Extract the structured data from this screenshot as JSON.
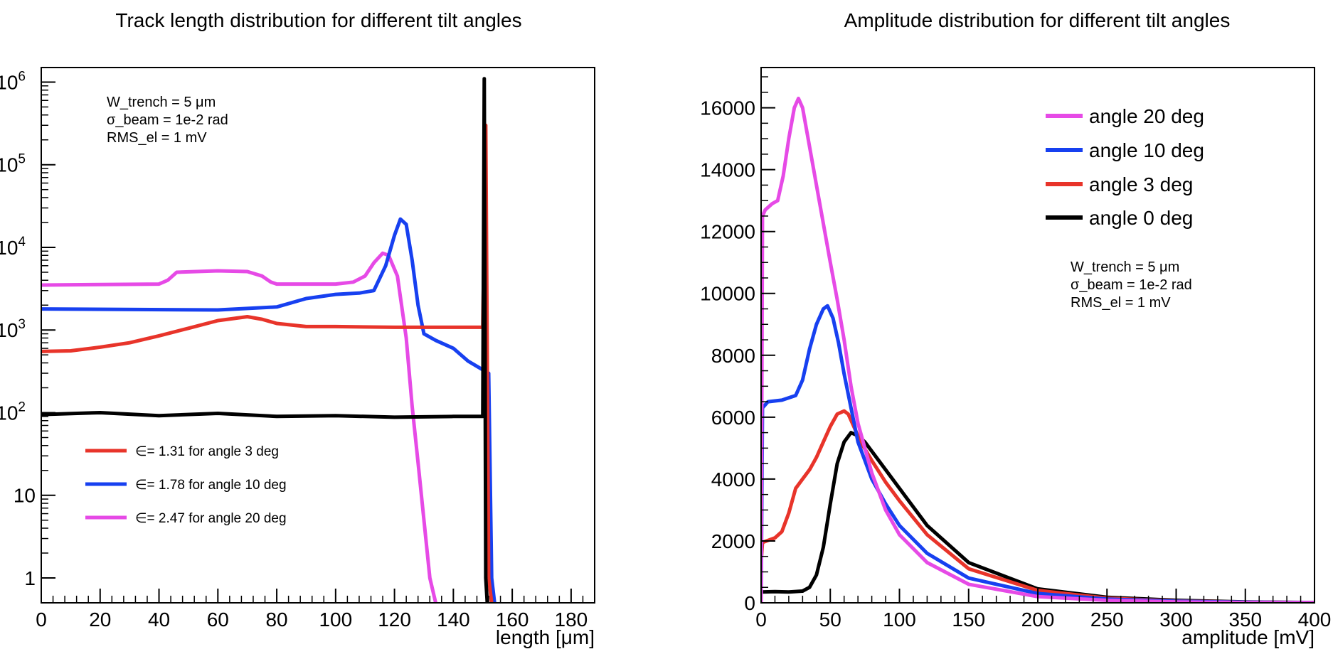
{
  "chart_data": [
    {
      "type": "line",
      "title": "Track length distribution for different tilt angles",
      "xlabel": "length [μm]",
      "ylabel": "",
      "xlim": [
        0,
        188
      ],
      "ylim": [
        0.5,
        1500000
      ],
      "yscale": "log",
      "x_ticks": [
        "0",
        "20",
        "40",
        "60",
        "80",
        "100",
        "120",
        "140",
        "160",
        "180"
      ],
      "y_ticks": [
        "1",
        "10",
        "10^2",
        "10^3",
        "10^4",
        "10^5",
        "10^6"
      ],
      "annotation": [
        "W_trench = 5 μm",
        "σ_beam = 1e-2 rad",
        "RMS_el = 1 mV"
      ],
      "legend": [
        {
          "label": "∈= 1.31 for angle 3 deg",
          "color": "#e8342a"
        },
        {
          "label": "∈= 1.78 for angle 10 deg",
          "color": "#1740f0"
        },
        {
          "label": "∈= 2.47 for angle 20 deg",
          "color": "#e64ae6"
        }
      ],
      "legend_position": "bottom-left",
      "series": [
        {
          "color": "#e64ae6",
          "x": [
            0,
            40,
            43,
            46,
            60,
            70,
            75,
            78,
            80,
            100,
            106,
            110,
            113,
            116,
            118,
            121,
            124,
            126,
            128,
            130,
            132,
            134
          ],
          "y": [
            3500,
            3600,
            4000,
            5000,
            5200,
            5100,
            4500,
            3800,
            3600,
            3600,
            3800,
            4500,
            6500,
            8500,
            8000,
            4500,
            800,
            120,
            25,
            5,
            1,
            0.5
          ]
        },
        {
          "color": "#1740f0",
          "x": [
            0,
            60,
            80,
            90,
            100,
            108,
            113,
            117,
            120,
            122,
            124,
            126,
            128,
            130,
            134,
            140,
            145,
            150,
            152,
            153,
            154
          ],
          "y": [
            1800,
            1750,
            1900,
            2400,
            2700,
            2800,
            3000,
            6000,
            14000,
            22000,
            19000,
            7000,
            2000,
            900,
            750,
            600,
            420,
            330,
            300,
            1,
            0.5
          ]
        },
        {
          "color": "#e8342a",
          "x": [
            0,
            10,
            20,
            30,
            40,
            50,
            60,
            70,
            75,
            80,
            90,
            100,
            120,
            140,
            150,
            151,
            152,
            153
          ],
          "y": [
            550,
            560,
            620,
            700,
            850,
            1050,
            1300,
            1450,
            1350,
            1200,
            1100,
            1100,
            1080,
            1080,
            1080,
            300000,
            1,
            0.5
          ]
        },
        {
          "color": "#000000",
          "x": [
            0,
            20,
            40,
            60,
            80,
            100,
            120,
            140,
            150,
            150.5,
            151,
            151.5
          ],
          "y": [
            95,
            100,
            92,
            98,
            90,
            92,
            88,
            90,
            90,
            1100000,
            1,
            0.5
          ]
        }
      ]
    },
    {
      "type": "line",
      "title": "Amplitude distribution for different tilt angles",
      "xlabel": "amplitude [mV]",
      "ylabel": "",
      "xlim": [
        0,
        400
      ],
      "ylim": [
        0,
        17300
      ],
      "x_ticks": [
        "0",
        "50",
        "100",
        "150",
        "200",
        "250",
        "300",
        "350",
        "400"
      ],
      "y_ticks": [
        "0",
        "2000",
        "4000",
        "6000",
        "8000",
        "10000",
        "12000",
        "14000",
        "16000"
      ],
      "annotation": [
        "W_trench = 5 μm",
        "σ_beam = 1e-2 rad",
        "RMS_el = 1 mV"
      ],
      "legend_position": "top-right",
      "series": [
        {
          "name": "angle 20 deg",
          "color": "#e64ae6",
          "x": [
            0,
            1,
            3,
            8,
            12,
            16,
            20,
            24,
            27,
            30,
            34,
            38,
            42,
            46,
            50,
            55,
            60,
            65,
            70,
            80,
            90,
            100,
            120,
            150,
            200,
            250,
            300,
            350,
            400
          ],
          "y": [
            0,
            12500,
            12700,
            12900,
            13000,
            13800,
            15000,
            16000,
            16300,
            16000,
            15000,
            14000,
            13000,
            12000,
            11000,
            9800,
            8500,
            7000,
            5800,
            4200,
            3000,
            2200,
            1300,
            600,
            200,
            80,
            30,
            10,
            5
          ]
        },
        {
          "name": "angle 10 deg",
          "color": "#1740f0",
          "x": [
            0,
            1,
            5,
            15,
            25,
            30,
            35,
            40,
            45,
            48,
            52,
            56,
            60,
            65,
            70,
            75,
            80,
            90,
            100,
            120,
            150,
            200,
            250,
            300,
            350,
            400
          ],
          "y": [
            0,
            6300,
            6500,
            6550,
            6700,
            7200,
            8200,
            9000,
            9500,
            9600,
            9200,
            8400,
            7400,
            6300,
            5200,
            4600,
            4000,
            3200,
            2500,
            1600,
            800,
            300,
            120,
            50,
            20,
            5
          ]
        },
        {
          "name": "angle 3 deg",
          "color": "#e8342a",
          "x": [
            0,
            1,
            10,
            15,
            20,
            25,
            30,
            35,
            40,
            45,
            50,
            55,
            60,
            63,
            68,
            72,
            80,
            90,
            100,
            120,
            150,
            200,
            250,
            300,
            350,
            400
          ],
          "y": [
            1300,
            1950,
            2100,
            2300,
            2900,
            3700,
            4000,
            4300,
            4700,
            5200,
            5700,
            6100,
            6200,
            6100,
            5600,
            5200,
            4600,
            3900,
            3300,
            2200,
            1100,
            400,
            150,
            60,
            20,
            5
          ]
        },
        {
          "name": "angle 0 deg",
          "color": "#000000",
          "x": [
            0,
            10,
            20,
            30,
            35,
            40,
            45,
            50,
            55,
            60,
            65,
            70,
            75,
            80,
            90,
            100,
            120,
            150,
            200,
            250,
            300,
            350,
            400
          ],
          "y": [
            350,
            360,
            350,
            380,
            500,
            900,
            1800,
            3200,
            4500,
            5200,
            5500,
            5400,
            5200,
            4900,
            4300,
            3700,
            2500,
            1300,
            450,
            180,
            80,
            30,
            10
          ]
        }
      ]
    }
  ]
}
